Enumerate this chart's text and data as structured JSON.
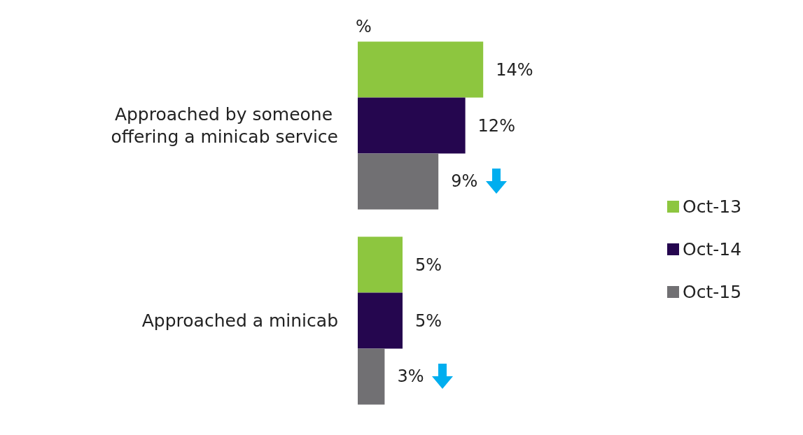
{
  "chart_data": {
    "type": "bar",
    "orientation": "horizontal",
    "annotations": [
      "%"
    ],
    "categories": [
      "Approached by someone offering a minicab service",
      "Approached a minicab"
    ],
    "series": [
      {
        "name": "Oct-13",
        "color": "#8dc63f",
        "values": [
          14,
          5
        ],
        "value_labels": [
          "14%",
          "5%"
        ]
      },
      {
        "name": "Oct-14",
        "color": "#25064f",
        "values": [
          12,
          5
        ],
        "value_labels": [
          "12%",
          "5%"
        ]
      },
      {
        "name": "Oct-15",
        "color": "#717073",
        "values": [
          9,
          3
        ],
        "value_labels": [
          "9%",
          "3%"
        ]
      }
    ],
    "legend": "right",
    "grid": false,
    "tick_labels": "y"
  }
}
